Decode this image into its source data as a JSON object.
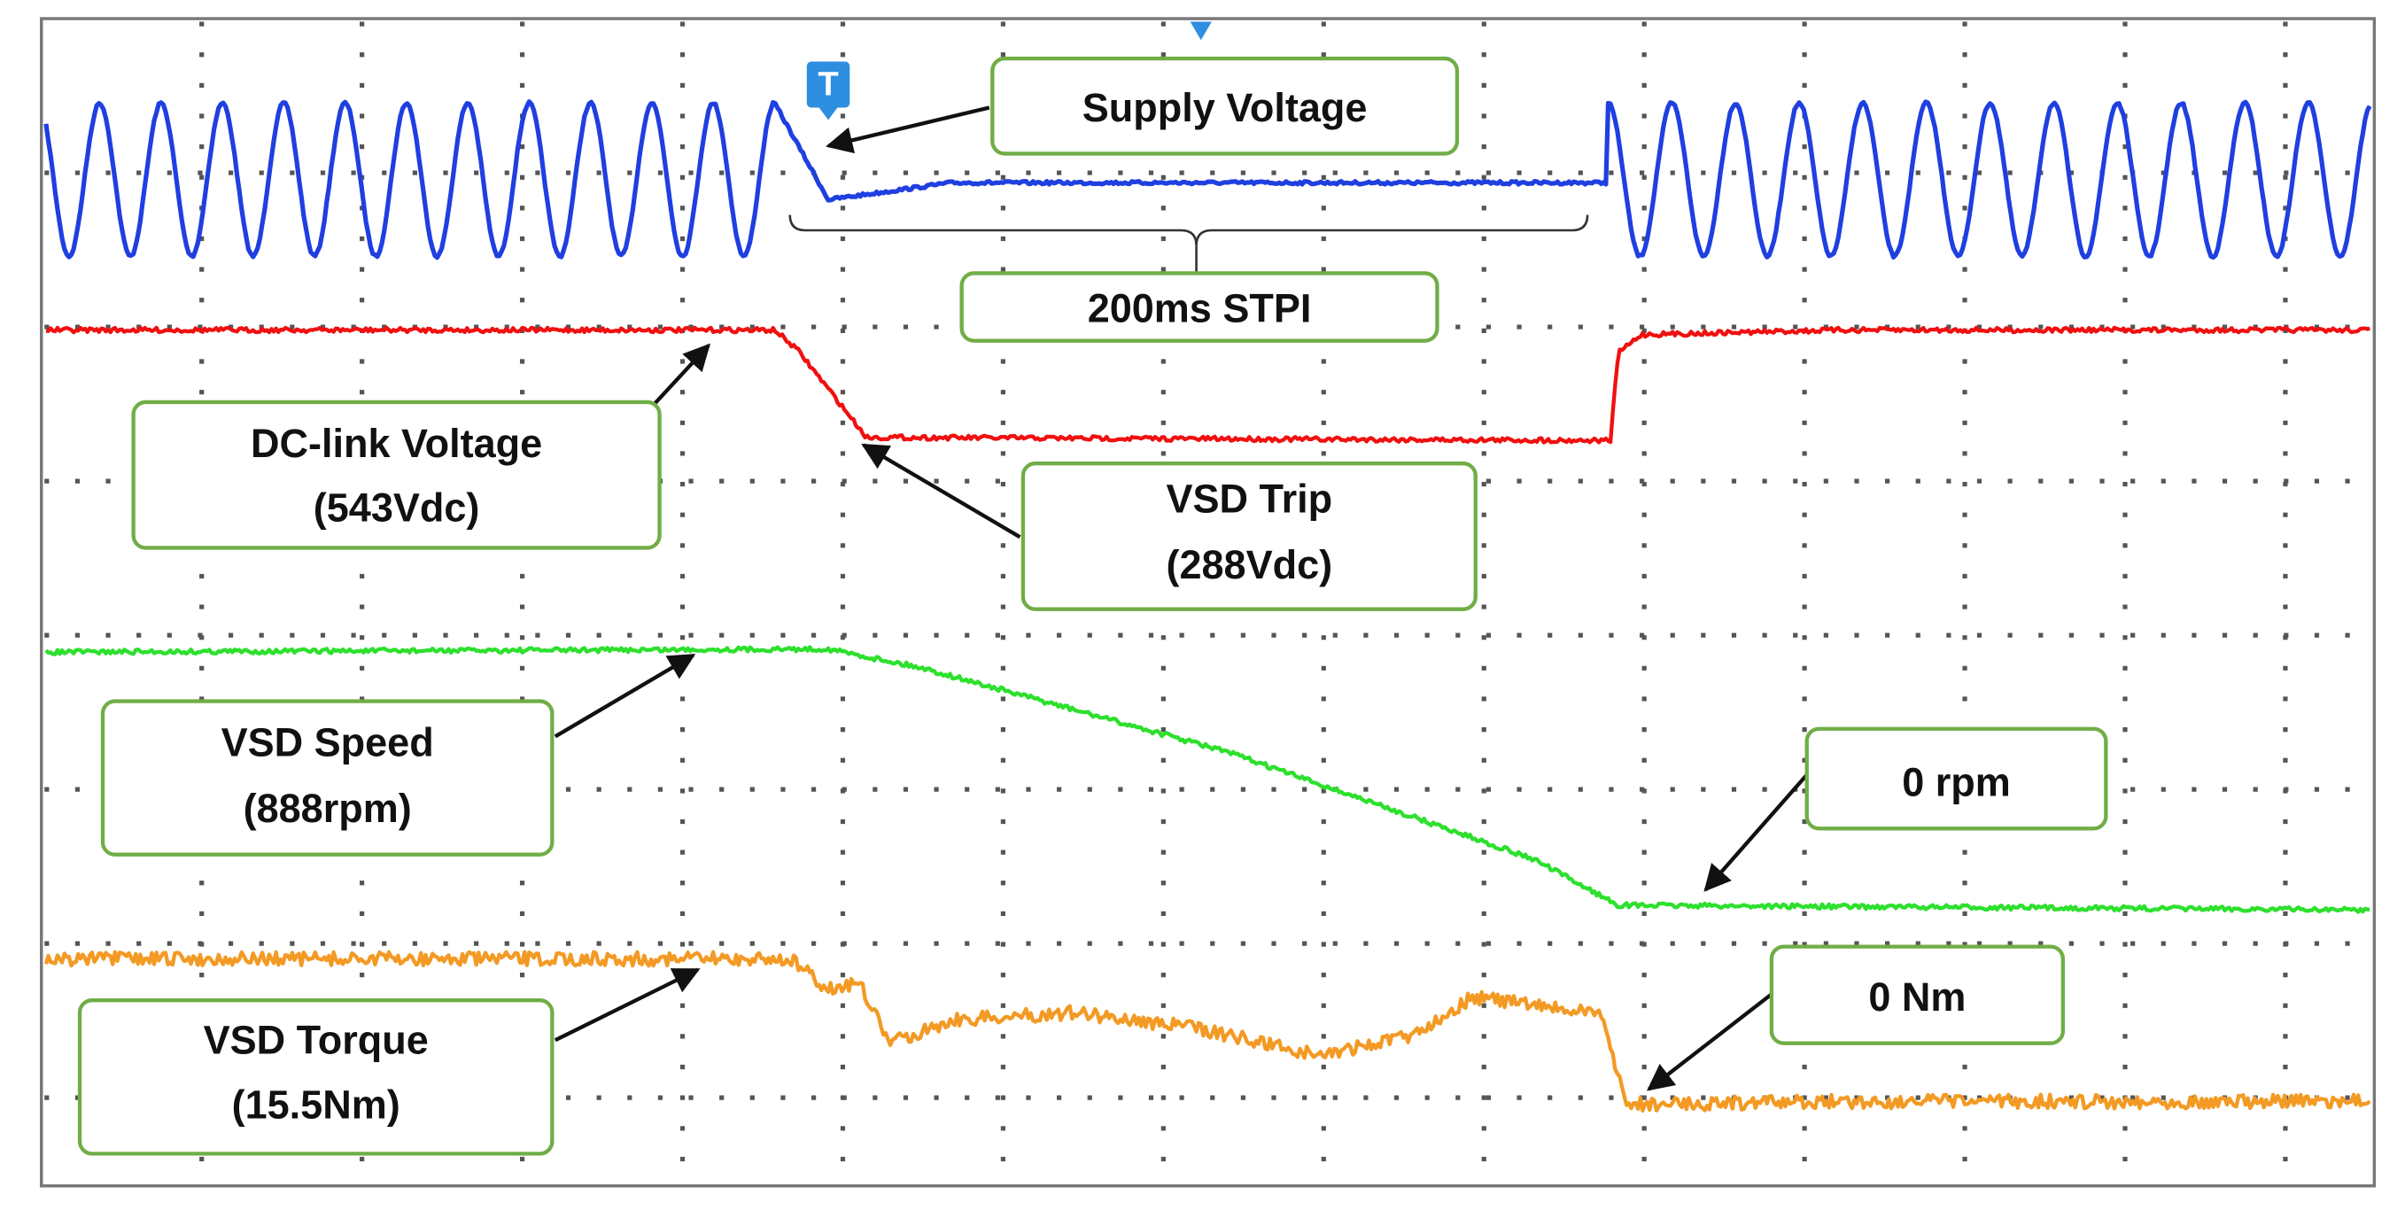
{
  "trigger_marker": "T",
  "annotations": [
    {
      "lines": [
        "Supply Voltage"
      ]
    },
    {
      "lines": [
        "200ms STPI"
      ]
    },
    {
      "lines": [
        "DC-link Voltage",
        "(543Vdc)"
      ]
    },
    {
      "lines": [
        "VSD Trip",
        "(288Vdc)"
      ]
    },
    {
      "lines": [
        "VSD Speed",
        "(888rpm)"
      ]
    },
    {
      "lines": [
        "0 rpm"
      ]
    },
    {
      "lines": [
        "VSD Torque",
        "(15.5Nm)"
      ]
    },
    {
      "lines": [
        "0 Nm"
      ]
    }
  ]
}
